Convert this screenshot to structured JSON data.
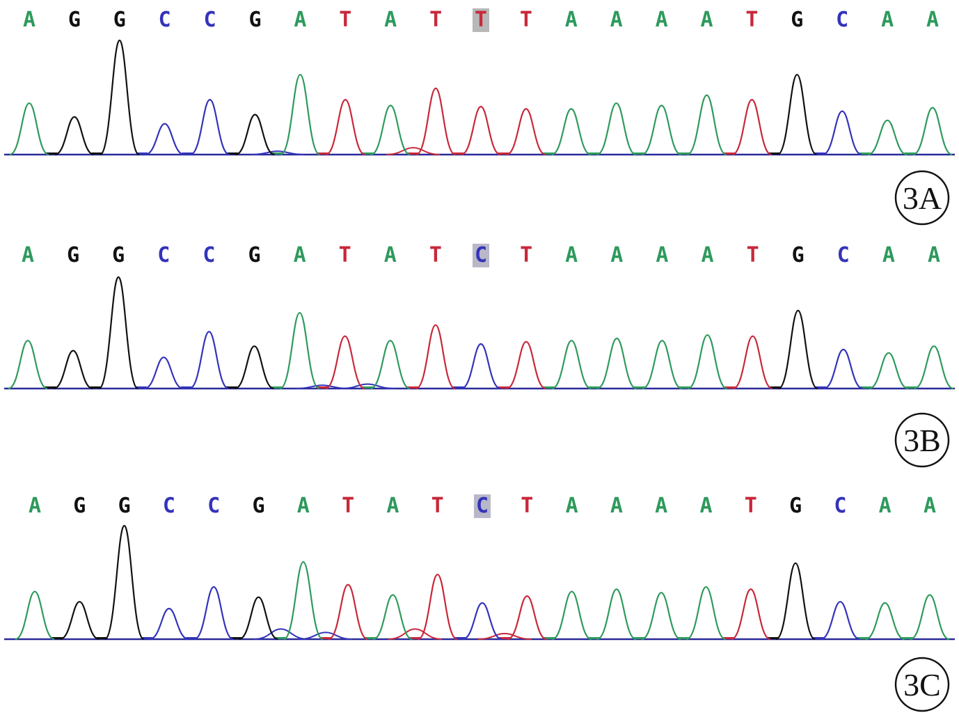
{
  "colors": {
    "A": "#2e9a5c",
    "G": "#111111",
    "C": "#3333bb",
    "T": "#c8283a",
    "highlight_T": "#b8b8b8",
    "highlight_C": "#b8b8c8",
    "baseline": "#2a2a9a"
  },
  "panels": [
    {
      "label": "3A",
      "sequence": [
        "A",
        "G",
        "G",
        "C",
        "C",
        "G",
        "A",
        "T",
        "A",
        "T",
        "T",
        "T",
        "A",
        "A",
        "A",
        "A",
        "T",
        "G",
        "C",
        "A",
        "A"
      ],
      "highlight_index": 10,
      "peak_heights": [
        0.45,
        0.33,
        1.0,
        0.27,
        0.48,
        0.35,
        0.7,
        0.48,
        0.43,
        0.58,
        0.42,
        0.4,
        0.4,
        0.45,
        0.43,
        0.52,
        0.48,
        0.7,
        0.38,
        0.3,
        0.41
      ],
      "secondary_peaks": [
        {
          "after": 5,
          "base": "C",
          "height": 0.03
        },
        {
          "after": 8,
          "base": "T",
          "height": 0.06
        }
      ]
    },
    {
      "label": "3B",
      "sequence": [
        "A",
        "G",
        "G",
        "C",
        "C",
        "G",
        "A",
        "T",
        "A",
        "T",
        "C",
        "T",
        "A",
        "A",
        "A",
        "A",
        "T",
        "G",
        "C",
        "A",
        "A"
      ],
      "highlight_index": 10,
      "peak_heights": [
        0.43,
        0.34,
        1.0,
        0.28,
        0.51,
        0.38,
        0.68,
        0.47,
        0.43,
        0.57,
        0.4,
        0.42,
        0.43,
        0.45,
        0.43,
        0.48,
        0.47,
        0.7,
        0.35,
        0.32,
        0.38
      ],
      "secondary_peaks": [
        {
          "after": 6,
          "base": "C",
          "height": 0.03
        },
        {
          "after": 7,
          "base": "C",
          "height": 0.04
        }
      ]
    },
    {
      "label": "3C",
      "sequence": [
        "A",
        "G",
        "G",
        "C",
        "C",
        "G",
        "A",
        "T",
        "A",
        "T",
        "C",
        "T",
        "A",
        "A",
        "A",
        "A",
        "T",
        "G",
        "C",
        "A",
        "A"
      ],
      "highlight_index": 10,
      "peak_heights": [
        0.42,
        0.33,
        1.0,
        0.27,
        0.46,
        0.37,
        0.68,
        0.48,
        0.39,
        0.57,
        0.32,
        0.38,
        0.42,
        0.44,
        0.41,
        0.46,
        0.44,
        0.67,
        0.33,
        0.32,
        0.39
      ],
      "secondary_peaks": [
        {
          "after": 5,
          "base": "C",
          "height": 0.09
        },
        {
          "after": 6,
          "base": "C",
          "height": 0.06
        },
        {
          "after": 8,
          "base": "T",
          "height": 0.09
        },
        {
          "after": 10,
          "base": "T",
          "height": 0.05
        }
      ]
    }
  ]
}
